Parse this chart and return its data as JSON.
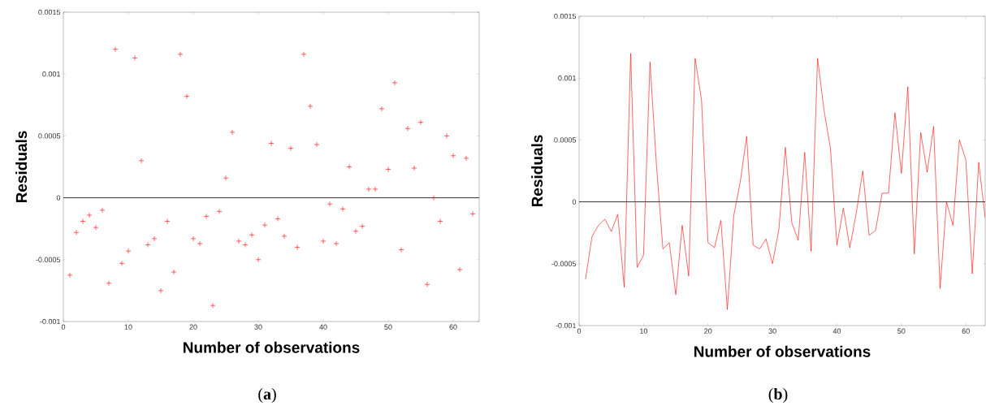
{
  "chart_data": [
    {
      "type": "scatter",
      "xlabel": "Number of observations",
      "ylabel": "Residuals",
      "marker": "cross",
      "grid": false,
      "x": [
        1,
        2,
        3,
        4,
        5,
        6,
        7,
        8,
        9,
        10,
        11,
        12,
        13,
        14,
        15,
        16,
        17,
        18,
        19,
        20,
        21,
        22,
        23,
        24,
        25,
        26,
        27,
        28,
        29,
        30,
        31,
        32,
        33,
        34,
        35,
        36,
        37,
        38,
        39,
        40,
        41,
        42,
        43,
        44,
        45,
        46,
        47,
        48,
        49,
        50,
        51,
        52,
        53,
        54,
        55,
        56,
        57,
        58,
        59,
        60,
        61,
        62,
        63
      ],
      "series": [
        {
          "color": "#ff0000",
          "values": [
            -0.000625,
            -0.00028,
            -0.00019,
            -0.00014,
            -0.00024,
            -0.0001,
            -0.00069,
            0.0012,
            -0.00053,
            -0.00043,
            0.00113,
            0.0003,
            -0.00038,
            -0.00033,
            -0.00075,
            -0.00019,
            -0.0006,
            0.00116,
            0.00082,
            -0.00033,
            -0.00037,
            -0.00015,
            -0.00087,
            -0.00011,
            0.00016,
            0.00053,
            -0.00035,
            -0.00038,
            -0.0003,
            -0.0005,
            -0.00022,
            0.00044,
            -0.00017,
            -0.00031,
            0.0004,
            -0.0004,
            0.00116,
            0.00074,
            0.00043,
            -0.00035,
            -5e-05,
            -0.00037,
            -9e-05,
            0.00025,
            -0.00027,
            -0.00023,
            7e-05,
            7e-05,
            0.00072,
            0.00023,
            0.00093,
            -0.00042,
            0.00056,
            0.00024,
            0.00061,
            -0.0007,
            0,
            -0.00019,
            0.0005,
            0.00034,
            -0.00058,
            0.00032,
            -0.00013
          ]
        }
      ],
      "xlim": [
        0,
        64
      ],
      "xticks": [
        0,
        10,
        20,
        30,
        40,
        50,
        60
      ],
      "ylim": [
        -0.001,
        0.0015
      ],
      "yticks": [
        -0.001,
        -0.0005,
        0,
        0.0005,
        0.001,
        0.0015
      ],
      "ref_lines": [
        {
          "axis": "y",
          "value": 0,
          "color": "#000000"
        }
      ],
      "annotations": [
        "(**a**)"
      ]
    },
    {
      "type": "line",
      "xlabel": "Number of observations",
      "ylabel": "Residuals",
      "marker": "none",
      "line_style": "solid",
      "grid": false,
      "x": [
        1,
        2,
        3,
        4,
        5,
        6,
        7,
        8,
        9,
        10,
        11,
        12,
        13,
        14,
        15,
        16,
        17,
        18,
        19,
        20,
        21,
        22,
        23,
        24,
        25,
        26,
        27,
        28,
        29,
        30,
        31,
        32,
        33,
        34,
        35,
        36,
        37,
        38,
        39,
        40,
        41,
        42,
        43,
        44,
        45,
        46,
        47,
        48,
        49,
        50,
        51,
        52,
        53,
        54,
        55,
        56,
        57,
        58,
        59,
        60,
        61,
        62,
        63
      ],
      "series": [
        {
          "color": "#ff0000",
          "values": [
            -0.000625,
            -0.00028,
            -0.00019,
            -0.00014,
            -0.00024,
            -0.0001,
            -0.00069,
            0.0012,
            -0.00053,
            -0.00043,
            0.00113,
            0.0003,
            -0.00038,
            -0.00033,
            -0.00075,
            -0.00019,
            -0.0006,
            0.00116,
            0.00082,
            -0.00033,
            -0.00037,
            -0.00015,
            -0.00087,
            -0.00011,
            0.00016,
            0.00053,
            -0.00035,
            -0.00038,
            -0.0003,
            -0.0005,
            -0.00022,
            0.00044,
            -0.00017,
            -0.00031,
            0.0004,
            -0.0004,
            0.00116,
            0.00074,
            0.00043,
            -0.00035,
            -5e-05,
            -0.00037,
            -9e-05,
            0.00025,
            -0.00027,
            -0.00023,
            7e-05,
            7e-05,
            0.00072,
            0.00023,
            0.00093,
            -0.00042,
            0.00056,
            0.00024,
            0.00061,
            -0.0007,
            0,
            -0.00019,
            0.0005,
            0.00034,
            -0.00058,
            0.00032,
            -0.00013
          ]
        }
      ],
      "xlim": [
        0,
        63
      ],
      "xticks": [
        0,
        10,
        20,
        30,
        40,
        50,
        60
      ],
      "ylim": [
        -0.001,
        0.0015
      ],
      "yticks": [
        -0.001,
        -0.0005,
        0,
        0.0005,
        0.001,
        0.0015
      ],
      "ref_lines": [
        {
          "axis": "y",
          "value": 0,
          "color": "#000000"
        }
      ],
      "annotations": [
        "(**b**)"
      ]
    }
  ]
}
